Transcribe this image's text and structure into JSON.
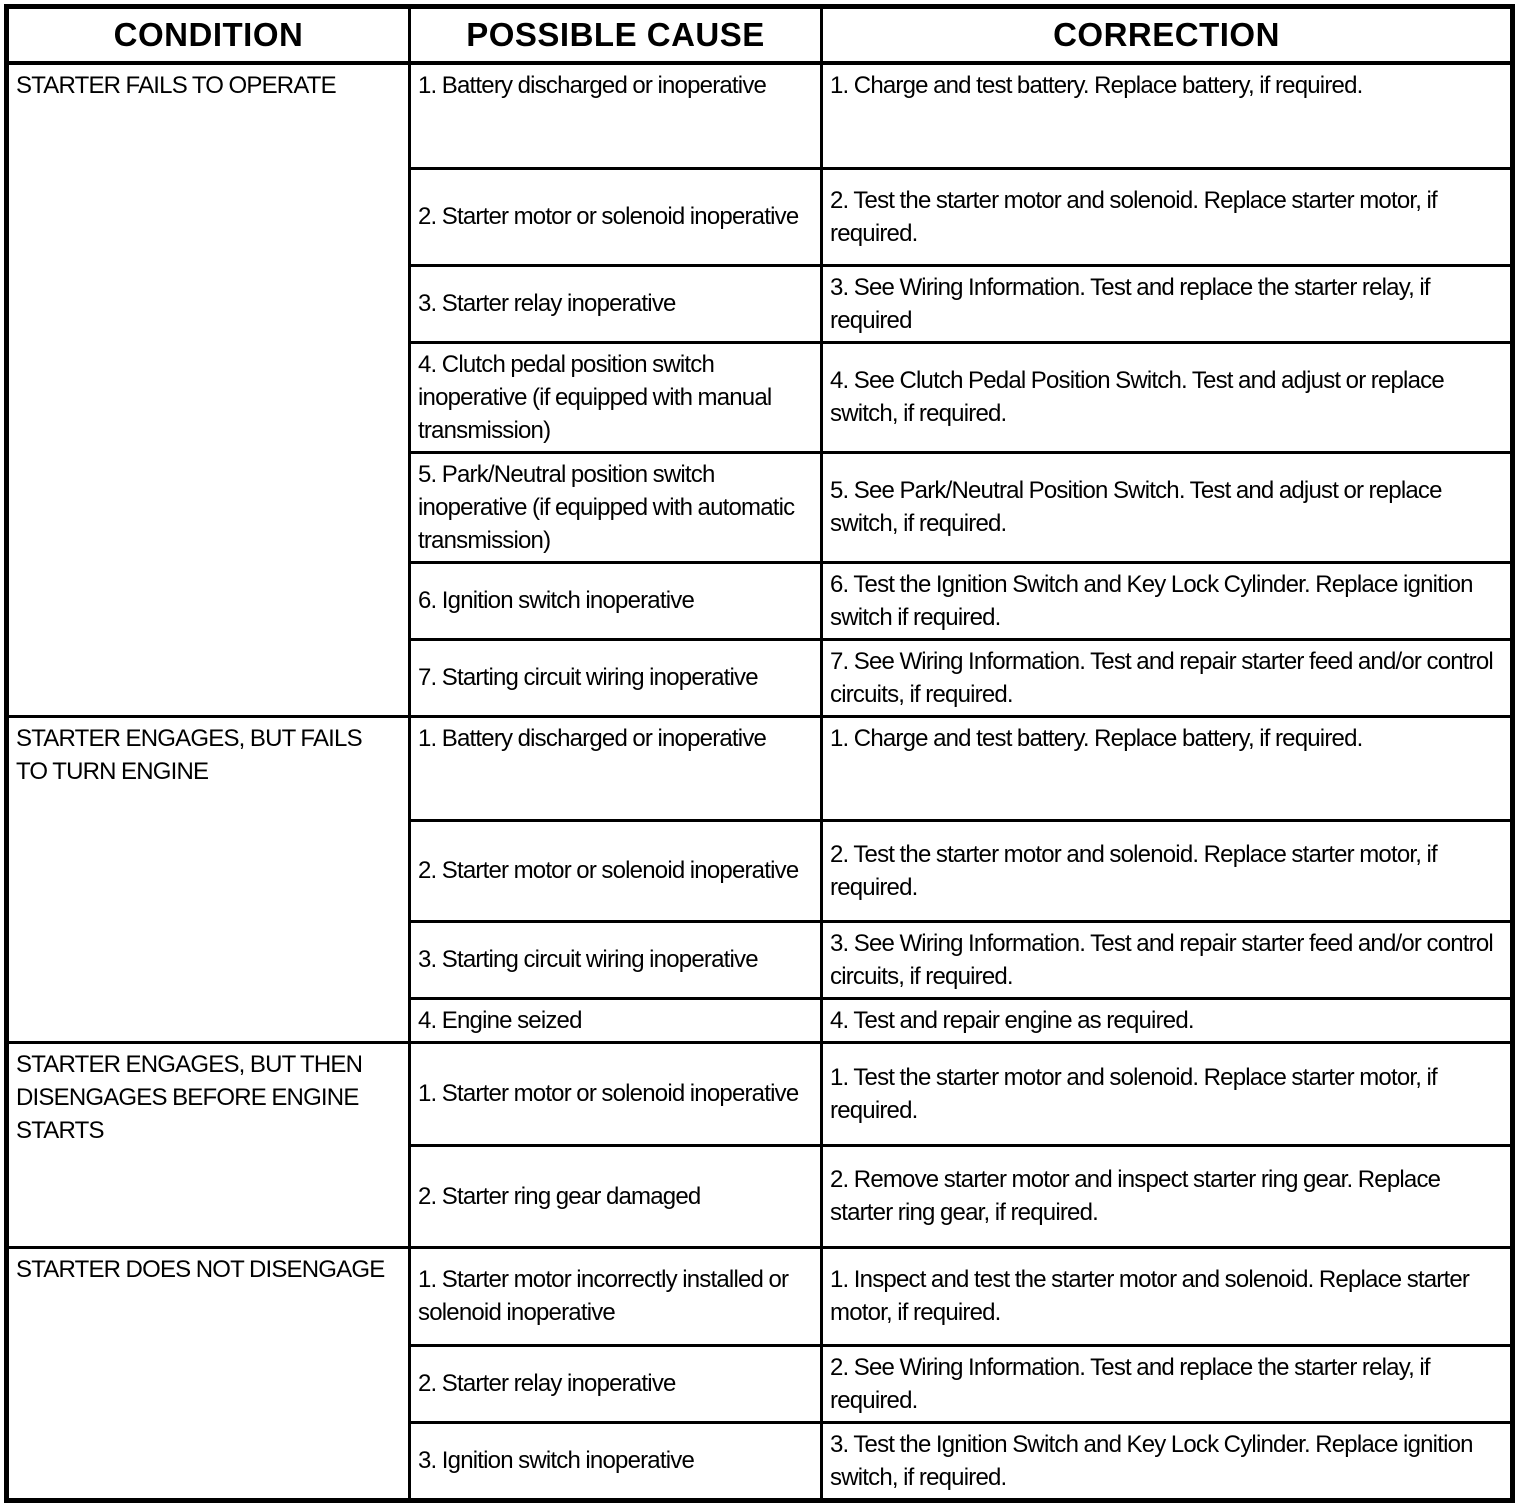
{
  "table": {
    "headers": [
      {
        "label": "CONDITION"
      },
      {
        "label": "POSSIBLE CAUSE"
      },
      {
        "label": "CORRECTION"
      }
    ],
    "sections": [
      {
        "condition": "STARTER FAILS TO OPERATE",
        "rows": [
          {
            "cause": "1. Battery discharged or inoperative",
            "correction": "1. Charge and test battery. Replace battery, if required."
          },
          {
            "cause": "2. Starter motor or solenoid inoperative",
            "correction": "2. Test the starter motor and solenoid. Replace starter motor, if required."
          },
          {
            "cause": "3. Starter relay inoperative",
            "correction": "3. See Wiring Information. Test and replace the starter relay, if required"
          },
          {
            "cause": "4. Clutch pedal position switch inoperative (if equipped with manual transmission)",
            "correction": "4. See Clutch Pedal Position Switch. Test and adjust or replace switch, if required."
          },
          {
            "cause": "5. Park/Neutral position switch inoperative (if equipped with automatic transmission)",
            "correction": "5. See Park/Neutral Position Switch. Test and adjust or replace switch, if required."
          },
          {
            "cause": "6. Ignition switch inoperative",
            "correction": "6. Test the Ignition Switch and Key Lock Cylinder. Replace ignition switch if required."
          },
          {
            "cause": "7. Starting circuit wiring inoperative",
            "correction": "7. See Wiring Information. Test and repair starter feed and/or control circuits, if required."
          }
        ]
      },
      {
        "condition": "STARTER ENGAGES, BUT FAILS TO TURN ENGINE",
        "rows": [
          {
            "cause": "1. Battery discharged or inoperative",
            "correction": "1. Charge and test battery. Replace battery, if required."
          },
          {
            "cause": "2. Starter motor or solenoid inoperative",
            "correction": "2. Test the starter motor and solenoid. Replace starter motor, if required."
          },
          {
            "cause": "3. Starting circuit wiring inoperative",
            "correction": "3. See Wiring Information. Test and repair starter feed and/or control circuits, if required."
          },
          {
            "cause": "4. Engine seized",
            "correction": "4. Test and repair engine as required."
          }
        ]
      },
      {
        "condition": "STARTER ENGAGES, BUT THEN DISENGAGES BEFORE ENGINE STARTS",
        "rows": [
          {
            "cause": "1. Starter motor or solenoid inoperative",
            "correction": "1. Test the starter motor and solenoid. Replace starter motor, if required."
          },
          {
            "cause": "2. Starter ring gear damaged",
            "correction": "2. Remove starter motor and inspect starter ring gear. Replace starter ring gear, if required."
          }
        ]
      },
      {
        "condition": "STARTER DOES NOT DISENGAGE",
        "rows": [
          {
            "cause": "1. Starter motor incorrectly installed or solenoid inoperative",
            "correction": "1. Inspect and test the starter motor and solenoid. Replace starter motor, if required."
          },
          {
            "cause": "2. Starter relay inoperative",
            "correction": "2. See Wiring Information. Test and replace the starter relay, if required."
          },
          {
            "cause": "3. Ignition switch inoperative",
            "correction": "3. Test the Ignition Switch and Key Lock Cylinder. Replace ignition switch, if required."
          }
        ]
      }
    ]
  },
  "colors": {
    "border": "#000000",
    "background": "#ffffff",
    "text": "#000000"
  }
}
